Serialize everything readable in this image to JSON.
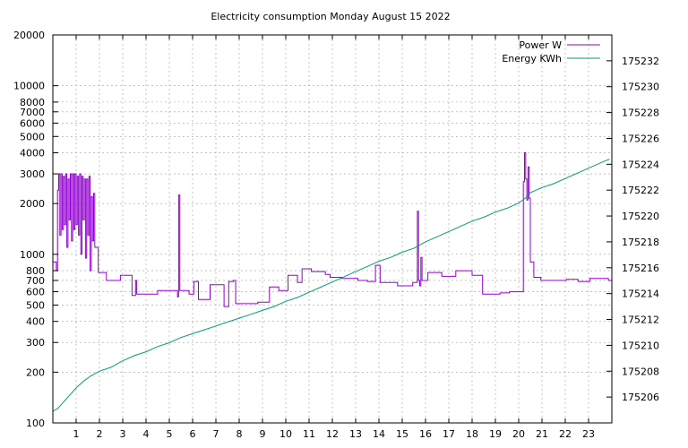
{
  "chart_data": {
    "type": "line",
    "title": "Electricity consumption Monday August 15 2022",
    "xlabel": "",
    "ylabel": "",
    "y2label": "",
    "grid": true,
    "legend_position": "top-right",
    "x_range": [
      0,
      24
    ],
    "x_ticks": [
      1,
      2,
      3,
      4,
      5,
      6,
      7,
      8,
      9,
      10,
      11,
      12,
      13,
      14,
      15,
      16,
      17,
      18,
      19,
      20,
      21,
      22,
      23
    ],
    "y_scale": "log",
    "y_range": [
      100,
      20000
    ],
    "y_ticks": [
      100,
      200,
      300,
      400,
      500,
      600,
      700,
      800,
      1000,
      2000,
      3000,
      4000,
      5000,
      6000,
      7000,
      8000,
      10000,
      20000
    ],
    "y2_range": [
      175204,
      175234
    ],
    "y2_ticks": [
      175206,
      175208,
      175210,
      175212,
      175214,
      175216,
      175218,
      175220,
      175222,
      175224,
      175226,
      175228,
      175230,
      175232
    ],
    "series": [
      {
        "name": "Power W",
        "axis": "y",
        "color": "#9400d3",
        "step": true,
        "points": [
          [
            0,
            900
          ],
          [
            0.15,
            800
          ],
          [
            0.2,
            2400
          ],
          [
            0.25,
            3000
          ],
          [
            0.3,
            1300
          ],
          [
            0.35,
            3000
          ],
          [
            0.4,
            1400
          ],
          [
            0.45,
            2900
          ],
          [
            0.5,
            1500
          ],
          [
            0.55,
            3000
          ],
          [
            0.6,
            1100
          ],
          [
            0.65,
            2800
          ],
          [
            0.7,
            1600
          ],
          [
            0.75,
            3000
          ],
          [
            0.8,
            1200
          ],
          [
            0.85,
            3000
          ],
          [
            0.9,
            1400
          ],
          [
            0.95,
            3000
          ],
          [
            1.0,
            1500
          ],
          [
            1.05,
            2900
          ],
          [
            1.1,
            1300
          ],
          [
            1.15,
            3000
          ],
          [
            1.2,
            1000
          ],
          [
            1.25,
            2900
          ],
          [
            1.3,
            1600
          ],
          [
            1.35,
            2800
          ],
          [
            1.4,
            950
          ],
          [
            1.45,
            2800
          ],
          [
            1.5,
            1300
          ],
          [
            1.55,
            2900
          ],
          [
            1.6,
            800
          ],
          [
            1.65,
            2200
          ],
          [
            1.7,
            1200
          ],
          [
            1.75,
            2300
          ],
          [
            1.8,
            1100
          ],
          [
            1.95,
            780
          ],
          [
            2.3,
            700
          ],
          [
            2.9,
            750
          ],
          [
            3.4,
            570
          ],
          [
            3.55,
            700
          ],
          [
            3.6,
            580
          ],
          [
            4.5,
            610
          ],
          [
            5.35,
            560
          ],
          [
            5.4,
            2250
          ],
          [
            5.45,
            610
          ],
          [
            5.85,
            580
          ],
          [
            6.05,
            690
          ],
          [
            6.25,
            540
          ],
          [
            6.75,
            660
          ],
          [
            7.35,
            490
          ],
          [
            7.55,
            690
          ],
          [
            7.75,
            700
          ],
          [
            7.85,
            510
          ],
          [
            8.8,
            520
          ],
          [
            9.3,
            640
          ],
          [
            9.7,
            610
          ],
          [
            10.1,
            750
          ],
          [
            10.5,
            680
          ],
          [
            10.7,
            820
          ],
          [
            11.1,
            790
          ],
          [
            11.7,
            760
          ],
          [
            11.9,
            730
          ],
          [
            12.4,
            720
          ],
          [
            13.1,
            700
          ],
          [
            13.5,
            690
          ],
          [
            13.85,
            860
          ],
          [
            14.05,
            680
          ],
          [
            14.8,
            650
          ],
          [
            15.45,
            680
          ],
          [
            15.65,
            1800
          ],
          [
            15.7,
            700
          ],
          [
            15.75,
            650
          ],
          [
            15.8,
            960
          ],
          [
            15.85,
            700
          ],
          [
            16.1,
            780
          ],
          [
            16.7,
            740
          ],
          [
            17.3,
            800
          ],
          [
            18.0,
            750
          ],
          [
            18.45,
            580
          ],
          [
            19.2,
            590
          ],
          [
            19.6,
            600
          ],
          [
            20.15,
            600
          ],
          [
            20.2,
            2700
          ],
          [
            20.25,
            4000
          ],
          [
            20.3,
            2800
          ],
          [
            20.35,
            2100
          ],
          [
            20.4,
            3300
          ],
          [
            20.45,
            2150
          ],
          [
            20.5,
            900
          ],
          [
            20.65,
            730
          ],
          [
            20.95,
            700
          ],
          [
            21.7,
            700
          ],
          [
            22.05,
            710
          ],
          [
            22.55,
            690
          ],
          [
            23.05,
            720
          ],
          [
            23.85,
            700
          ],
          [
            24.0,
            700
          ]
        ]
      },
      {
        "name": "Energy KWh",
        "axis": "y2",
        "color": "#009e73",
        "step": false,
        "points": [
          [
            0,
            175204.9
          ],
          [
            0.2,
            175205.1
          ],
          [
            0.4,
            175205.5
          ],
          [
            0.6,
            175205.9
          ],
          [
            0.8,
            175206.3
          ],
          [
            1.0,
            175206.7
          ],
          [
            1.3,
            175207.2
          ],
          [
            1.6,
            175207.6
          ],
          [
            1.8,
            175207.8
          ],
          [
            2.0,
            175208.0
          ],
          [
            2.5,
            175208.3
          ],
          [
            3.0,
            175208.8
          ],
          [
            3.5,
            175209.2
          ],
          [
            4.0,
            175209.5
          ],
          [
            4.5,
            175209.9
          ],
          [
            5.0,
            175210.2
          ],
          [
            5.5,
            175210.6
          ],
          [
            6.0,
            175210.9
          ],
          [
            6.5,
            175211.2
          ],
          [
            7.0,
            175211.5
          ],
          [
            7.5,
            175211.8
          ],
          [
            8.0,
            175212.1
          ],
          [
            8.5,
            175212.4
          ],
          [
            9.0,
            175212.7
          ],
          [
            9.5,
            175213.0
          ],
          [
            10.0,
            175213.4
          ],
          [
            10.5,
            175213.7
          ],
          [
            11.0,
            175214.1
          ],
          [
            11.5,
            175214.5
          ],
          [
            12.0,
            175214.9
          ],
          [
            12.5,
            175215.3
          ],
          [
            13.0,
            175215.7
          ],
          [
            13.5,
            175216.1
          ],
          [
            14.0,
            175216.5
          ],
          [
            14.5,
            175216.8
          ],
          [
            15.0,
            175217.2
          ],
          [
            15.5,
            175217.5
          ],
          [
            16.0,
            175218.0
          ],
          [
            16.5,
            175218.4
          ],
          [
            17.0,
            175218.8
          ],
          [
            17.5,
            175219.2
          ],
          [
            18.0,
            175219.6
          ],
          [
            18.5,
            175219.9
          ],
          [
            19.0,
            175220.3
          ],
          [
            19.5,
            175220.6
          ],
          [
            20.0,
            175221.0
          ],
          [
            20.3,
            175221.4
          ],
          [
            20.5,
            175221.8
          ],
          [
            21.0,
            175222.2
          ],
          [
            21.5,
            175222.5
          ],
          [
            22.0,
            175222.9
          ],
          [
            22.5,
            175223.3
          ],
          [
            23.0,
            175223.7
          ],
          [
            23.5,
            175224.1
          ],
          [
            23.9,
            175224.4
          ]
        ]
      }
    ]
  }
}
